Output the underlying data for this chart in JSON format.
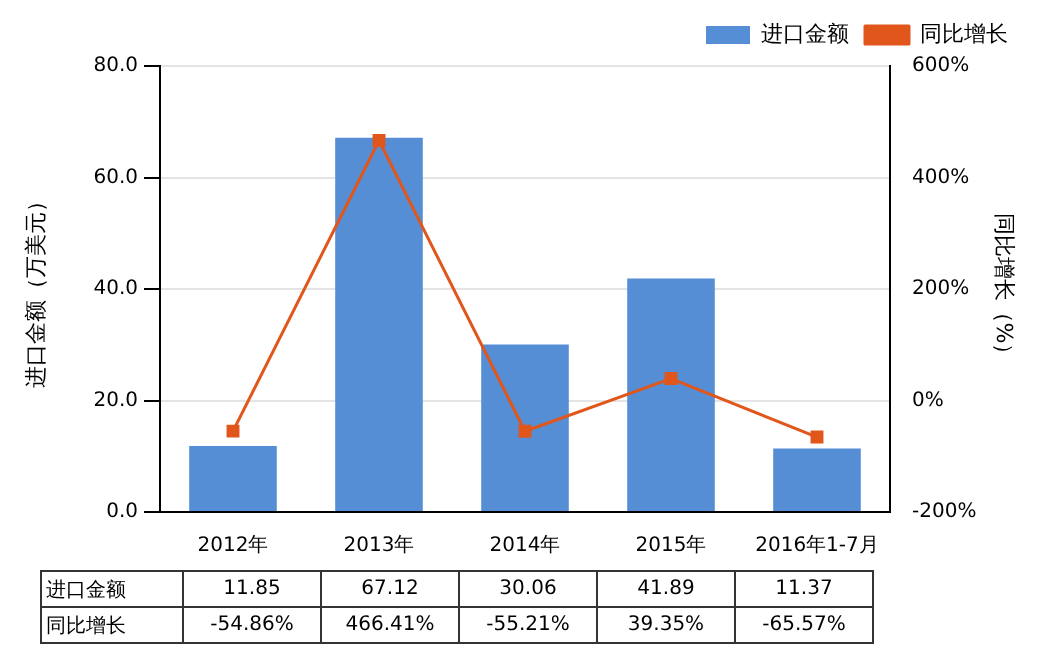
{
  "chart_data": {
    "type": "bar",
    "categories": [
      "2012年",
      "2013年",
      "2014年",
      "2015年",
      "2016年1-7月"
    ],
    "ylabel": "进口金额（万美元）",
    "y2label": "同比增长（%）",
    "series": [
      {
        "name": "进口金额",
        "color": "#558ed5",
        "values": [
          11.85,
          67.12,
          30.06,
          41.89,
          11.37
        ],
        "value_labels": [
          "11.85",
          "67.12",
          "30.06",
          "41.89",
          "11.37"
        ]
      },
      {
        "name": "同比增长",
        "type": "line",
        "axis": "y2",
        "color": "#e0561b",
        "values": [
          -54.86,
          466.41,
          -55.21,
          39.35,
          -65.57
        ],
        "value_labels": [
          "-54.86%",
          "466.41%",
          "-55.21%",
          "39.35%",
          "-65.57%"
        ]
      }
    ],
    "ylim": [
      0,
      80
    ],
    "yticks": [
      {
        "value": 0,
        "label": "0.0"
      },
      {
        "value": 20,
        "label": "20.0"
      },
      {
        "value": 40,
        "label": "40.0"
      },
      {
        "value": 60,
        "label": "60.0"
      },
      {
        "value": 80,
        "label": "80.0"
      }
    ],
    "y2lim": [
      -200,
      600
    ],
    "y2ticks": [
      {
        "value": -200,
        "label": "-200%"
      },
      {
        "value": 0,
        "label": "0%"
      },
      {
        "value": 200,
        "label": "200%"
      },
      {
        "value": 400,
        "label": "400%"
      },
      {
        "value": 600,
        "label": "600%"
      }
    ],
    "grid": "y",
    "legend": "top right",
    "marker": "square",
    "line_style": "solid"
  }
}
